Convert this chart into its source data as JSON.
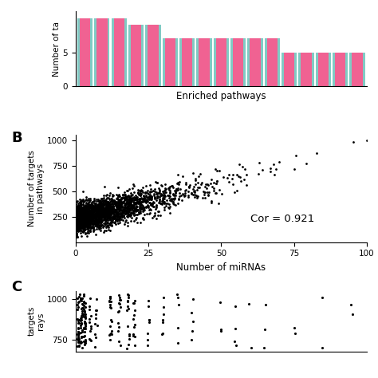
{
  "panel_A": {
    "bar_heights": [
      10,
      10,
      10,
      9,
      9,
      7,
      7,
      7,
      7,
      7,
      7,
      7,
      5,
      5,
      5,
      5,
      5
    ],
    "bar_color": "#F06292",
    "mint_color": "#80CBC4",
    "ylabel": "Number of ta",
    "xlabel": "Enriched pathways",
    "yticks": [
      0,
      5
    ],
    "ylim": [
      0,
      11
    ]
  },
  "panel_B": {
    "cor_text": "Cor = 0.921",
    "xlabel": "Number of miRNAs",
    "ylabel": "Number of targets\nin pathways",
    "xlim": [
      0,
      100
    ],
    "ylim": [
      0,
      1050
    ],
    "xticks": [
      0,
      25,
      50,
      75,
      100
    ],
    "yticks": [
      250,
      500,
      750,
      1000
    ],
    "label": "B"
  },
  "panel_C": {
    "ylabel_top": "targets",
    "ylabel_bot": "rays",
    "yticks": [
      750,
      1000
    ],
    "ylim": [
      680,
      1050
    ],
    "xlim": [
      0,
      100
    ],
    "label": "C"
  },
  "background_color": "#ffffff",
  "scatter_color": "#000000",
  "scatter_size_B": 4,
  "scatter_size_C": 5
}
